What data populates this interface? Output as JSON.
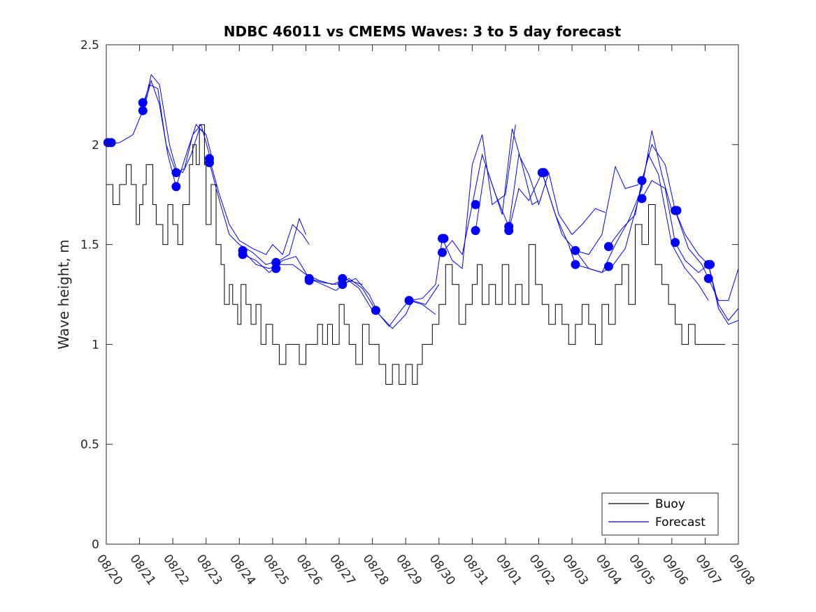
{
  "chart_data": {
    "type": "line",
    "title": "NDBC 46011 vs CMEMS Waves: 3 to 5 day forecast",
    "xlabel": "",
    "ylabel": "Wave height, m",
    "xlim": [
      0,
      19
    ],
    "ylim": [
      0,
      2.5
    ],
    "grid": false,
    "legend_position": "bottom-right",
    "xtick_labels": [
      "08/20",
      "08/21",
      "08/22",
      "08/23",
      "08/24",
      "08/25",
      "08/26",
      "08/27",
      "08/28",
      "08/29",
      "08/30",
      "08/31",
      "09/01",
      "09/02",
      "09/03",
      "09/04",
      "09/05",
      "09/06",
      "09/07",
      "09/08"
    ],
    "ytick_values": [
      0,
      0.5,
      1,
      1.5,
      2,
      2.5
    ],
    "ytick_labels": [
      "0",
      "0.5",
      "1",
      "1.5",
      "2",
      "2.5"
    ],
    "colors": {
      "buoy": "#000000",
      "forecast": "#0000ff"
    },
    "series": [
      {
        "name": "Buoy",
        "type": "step-line",
        "x": [
          0,
          0.2,
          0.4,
          0.6,
          0.75,
          0.9,
          1.0,
          1.1,
          1.2,
          1.4,
          1.5,
          1.7,
          1.85,
          2.0,
          2.15,
          2.3,
          2.5,
          2.6,
          2.7,
          2.8,
          2.95,
          3.0,
          3.15,
          3.3,
          3.45,
          3.55,
          3.7,
          3.8,
          3.95,
          4.05,
          4.2,
          4.35,
          4.5,
          4.65,
          4.8,
          5.0,
          5.2,
          5.4,
          5.6,
          5.8,
          6.0,
          6.2,
          6.35,
          6.5,
          6.65,
          6.8,
          7.0,
          7.15,
          7.3,
          7.5,
          7.7,
          7.9,
          8.1,
          8.2,
          8.4,
          8.6,
          8.8,
          9.0,
          9.2,
          9.35,
          9.5,
          9.65,
          9.8,
          10.0,
          10.2,
          10.4,
          10.6,
          10.8,
          11.0,
          11.15,
          11.3,
          11.5,
          11.7,
          11.9,
          12.1,
          12.3,
          12.5,
          12.7,
          12.9,
          13.1,
          13.3,
          13.5,
          13.7,
          13.9,
          14.1,
          14.3,
          14.5,
          14.7,
          14.9,
          15.1,
          15.3,
          15.5,
          15.7,
          15.9,
          16.1,
          16.3,
          16.5,
          16.7,
          16.9,
          17.1,
          17.3,
          17.5,
          17.7,
          17.9,
          18.1,
          18.3,
          18.6
        ],
        "values": [
          1.8,
          1.7,
          1.8,
          1.9,
          1.8,
          1.6,
          1.7,
          1.8,
          1.9,
          1.7,
          1.6,
          1.5,
          1.7,
          1.6,
          1.5,
          1.7,
          1.9,
          2.0,
          1.9,
          2.1,
          1.9,
          1.6,
          1.8,
          1.5,
          1.4,
          1.2,
          1.3,
          1.2,
          1.1,
          1.3,
          1.2,
          1.1,
          1.2,
          1.0,
          1.1,
          1.0,
          0.9,
          1.0,
          1.0,
          0.9,
          1.0,
          1.0,
          1.1,
          1.0,
          1.1,
          1.0,
          1.2,
          1.1,
          1.0,
          0.9,
          1.1,
          1.0,
          1.0,
          0.9,
          0.8,
          0.9,
          0.8,
          0.9,
          0.8,
          0.9,
          1.0,
          1.0,
          1.1,
          1.2,
          1.4,
          1.3,
          1.1,
          1.2,
          1.3,
          1.4,
          1.2,
          1.3,
          1.2,
          1.4,
          1.2,
          1.3,
          1.2,
          1.5,
          1.3,
          1.2,
          1.1,
          1.2,
          1.1,
          1.0,
          1.1,
          1.2,
          1.1,
          1.0,
          1.2,
          1.1,
          1.3,
          1.4,
          1.2,
          1.6,
          1.5,
          1.7,
          1.4,
          1.3,
          1.2,
          1.1,
          1.0,
          1.1,
          1.0,
          1.0,
          1.0,
          1.0,
          1.0
        ]
      },
      {
        "name": "Forecast",
        "type": "line-group",
        "runs": [
          {
            "x": [
              0,
              0.4,
              0.8,
              1.1,
              1.35,
              1.6,
              1.9,
              2.1,
              2.3,
              2.55,
              2.8,
              3.0
            ],
            "y": [
              2.0,
              2.01,
              2.05,
              2.17,
              2.35,
              2.3,
              2.0,
              1.88,
              1.86,
              1.95,
              2.08,
              2.05
            ]
          },
          {
            "x": [
              1.1,
              1.3,
              1.55,
              1.8,
              2.1,
              2.35,
              2.6,
              2.85,
              3.1
            ],
            "y": [
              2.2,
              2.3,
              2.28,
              2.0,
              1.86,
              1.88,
              2.05,
              2.1,
              1.95
            ]
          },
          {
            "x": [
              1.1,
              1.35,
              1.6,
              1.85,
              2.1,
              2.4,
              2.7,
              3.0,
              3.2
            ],
            "y": [
              2.16,
              2.32,
              2.2,
              1.95,
              1.79,
              1.95,
              2.1,
              2.05,
              1.92
            ]
          },
          {
            "x": [
              3.1,
              3.4,
              3.7,
              4.0,
              4.4,
              4.8,
              5.0,
              5.3,
              5.6,
              5.9,
              6.1
            ],
            "y": [
              1.93,
              1.75,
              1.6,
              1.52,
              1.48,
              1.45,
              1.5,
              1.45,
              1.6,
              1.55,
              1.5
            ]
          },
          {
            "x": [
              3.1,
              3.4,
              3.7,
              4.0,
              4.4,
              4.8,
              5.2,
              5.5,
              5.8,
              6.0
            ],
            "y": [
              1.91,
              1.72,
              1.55,
              1.5,
              1.46,
              1.4,
              1.42,
              1.45,
              1.63,
              1.55
            ]
          },
          {
            "x": [
              4.1,
              4.5,
              4.9,
              5.2,
              5.6,
              6.0,
              6.4,
              6.8,
              7.2,
              7.6,
              8.0
            ],
            "y": [
              1.47,
              1.4,
              1.38,
              1.4,
              1.4,
              1.35,
              1.32,
              1.3,
              1.33,
              1.28,
              1.17
            ]
          },
          {
            "x": [
              4.1,
              4.5,
              4.9,
              5.3,
              5.7,
              6.1,
              6.5,
              6.9,
              7.3,
              7.7
            ],
            "y": [
              1.45,
              1.42,
              1.36,
              1.42,
              1.44,
              1.33,
              1.3,
              1.27,
              1.32,
              1.3
            ]
          },
          {
            "x": [
              6.1,
              6.5,
              6.9,
              7.3,
              7.7,
              8.1,
              8.5,
              8.9,
              9.1,
              9.5,
              9.9
            ],
            "y": [
              1.33,
              1.31,
              1.3,
              1.33,
              1.28,
              1.17,
              1.09,
              1.18,
              1.22,
              1.2,
              1.15
            ]
          },
          {
            "x": [
              7.1,
              7.5,
              7.9,
              8.2,
              8.6,
              9.0,
              9.2,
              9.6,
              10.0
            ],
            "y": [
              1.3,
              1.33,
              1.25,
              1.15,
              1.08,
              1.15,
              1.22,
              1.2,
              1.3
            ]
          },
          {
            "x": [
              9.1,
              9.5,
              9.9,
              10.1,
              10.4,
              10.7,
              11.0,
              11.3,
              11.6,
              12.0,
              12.3
            ],
            "y": [
              1.22,
              1.23,
              1.3,
              1.53,
              1.42,
              1.38,
              1.9,
              2.05,
              1.7,
              1.75,
              2.1
            ]
          },
          {
            "x": [
              10.1,
              10.4,
              10.7,
              11.0,
              11.3,
              11.6,
              11.9,
              12.2,
              12.5,
              12.8,
              13.0
            ],
            "y": [
              1.46,
              1.52,
              1.45,
              1.7,
              1.95,
              1.8,
              1.65,
              2.08,
              1.9,
              1.7,
              1.72
            ]
          },
          {
            "x": [
              11.1,
              11.4,
              11.7,
              12.1,
              12.4,
              12.7,
              13.0,
              13.3,
              13.6,
              14.0,
              14.3,
              14.7,
              15.0
            ],
            "y": [
              1.57,
              1.9,
              1.75,
              1.59,
              1.95,
              1.85,
              1.7,
              1.86,
              1.65,
              1.55,
              1.6,
              1.68,
              1.66
            ]
          },
          {
            "x": [
              12.1,
              12.4,
              12.7,
              13.1,
              13.4,
              13.7,
              14.1,
              14.5,
              14.9,
              15.3,
              15.6,
              16.0
            ],
            "y": [
              1.57,
              1.78,
              1.72,
              1.86,
              1.7,
              1.55,
              1.47,
              1.45,
              1.55,
              1.89,
              1.78,
              1.8
            ]
          },
          {
            "x": [
              13.1,
              13.5,
              13.9,
              14.1,
              14.5,
              14.9,
              15.3,
              15.7,
              16.1,
              16.4,
              16.7,
              17.0
            ],
            "y": [
              1.86,
              1.65,
              1.5,
              1.4,
              1.38,
              1.36,
              1.5,
              1.62,
              1.78,
              2.07,
              1.85,
              1.67
            ]
          },
          {
            "x": [
              14.1,
              14.5,
              14.9,
              15.2,
              15.6,
              16.0,
              16.3,
              16.6,
              17.0,
              17.4,
              17.8,
              18.1
            ],
            "y": [
              1.47,
              1.38,
              1.36,
              1.39,
              1.48,
              1.73,
              1.95,
              1.85,
              1.5,
              1.38,
              1.3,
              1.22
            ]
          },
          {
            "x": [
              15.1,
              15.5,
              15.9,
              16.1,
              16.4,
              16.8,
              17.1,
              17.5,
              17.9,
              18.1,
              18.4,
              18.7,
              19.0
            ],
            "y": [
              1.49,
              1.58,
              1.65,
              1.82,
              2.0,
              1.9,
              1.67,
              1.48,
              1.4,
              1.33,
              1.22,
              1.22,
              1.38
            ]
          },
          {
            "x": [
              16.1,
              16.4,
              16.8,
              17.1,
              17.4,
              17.8,
              18.1,
              18.4,
              18.7,
              19.0
            ],
            "y": [
              1.73,
              1.82,
              1.78,
              1.51,
              1.42,
              1.36,
              1.4,
              1.2,
              1.12,
              1.18
            ]
          },
          {
            "x": [
              17.1,
              17.4,
              17.8,
              18.1,
              18.4,
              18.7,
              19.0
            ],
            "y": [
              1.67,
              1.55,
              1.45,
              1.4,
              1.18,
              1.1,
              1.12
            ]
          }
        ],
        "markers": {
          "x": [
            0.05,
            0.15,
            1.1,
            1.1,
            2.1,
            2.1,
            3.1,
            3.1,
            4.1,
            4.1,
            5.1,
            5.1,
            6.1,
            6.1,
            7.1,
            7.1,
            8.1,
            9.1,
            10.1,
            10.1,
            10.15,
            11.1,
            11.1,
            12.1,
            12.1,
            13.1,
            13.15,
            14.1,
            14.1,
            15.1,
            15.1,
            16.1,
            16.1,
            17.1,
            17.1,
            17.15,
            18.1,
            18.1,
            18.15
          ],
          "y": [
            2.01,
            2.01,
            2.21,
            2.17,
            1.86,
            1.79,
            1.93,
            1.91,
            1.47,
            1.45,
            1.41,
            1.38,
            1.33,
            1.32,
            1.33,
            1.3,
            1.17,
            1.22,
            1.53,
            1.46,
            1.53,
            1.7,
            1.57,
            1.59,
            1.57,
            1.86,
            1.86,
            1.47,
            1.4,
            1.49,
            1.39,
            1.82,
            1.73,
            1.67,
            1.51,
            1.67,
            1.4,
            1.33,
            1.4
          ]
        }
      }
    ]
  }
}
